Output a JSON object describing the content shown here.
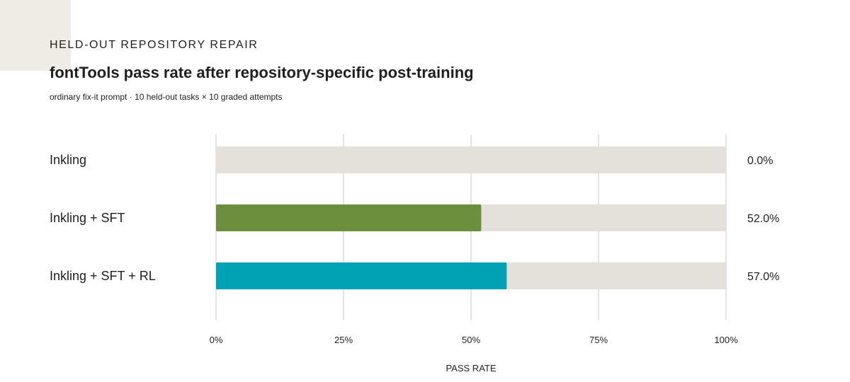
{
  "header": {
    "eyebrow": "HELD-OUT REPOSITORY REPAIR",
    "title": "fontTools pass rate after repository-specific post-training",
    "subtitle": "ordinary fix-it prompt · 10 held-out tasks × 10 graded attempts"
  },
  "colors": {
    "track": "#e4e0da",
    "gridline": "#dcdcdc",
    "corner_block": "#efebe5"
  },
  "chart_data": {
    "type": "bar",
    "orientation": "horizontal",
    "categories": [
      "Inkling",
      "Inkling + SFT",
      "Inkling + SFT + RL"
    ],
    "values": [
      0.0,
      52.0,
      57.0
    ],
    "value_labels": [
      "0.0%",
      "52.0%",
      "57.0%"
    ],
    "bar_colors": [
      "#6b8f3c",
      "#6b8f3c",
      "#00a2b4"
    ],
    "xlim": [
      0,
      100
    ],
    "xticks": [
      0,
      25,
      50,
      75,
      100
    ],
    "xtick_labels": [
      "0%",
      "25%",
      "50%",
      "75%",
      "100%"
    ],
    "xlabel": "PASS RATE",
    "grid": true,
    "legend": "none"
  }
}
